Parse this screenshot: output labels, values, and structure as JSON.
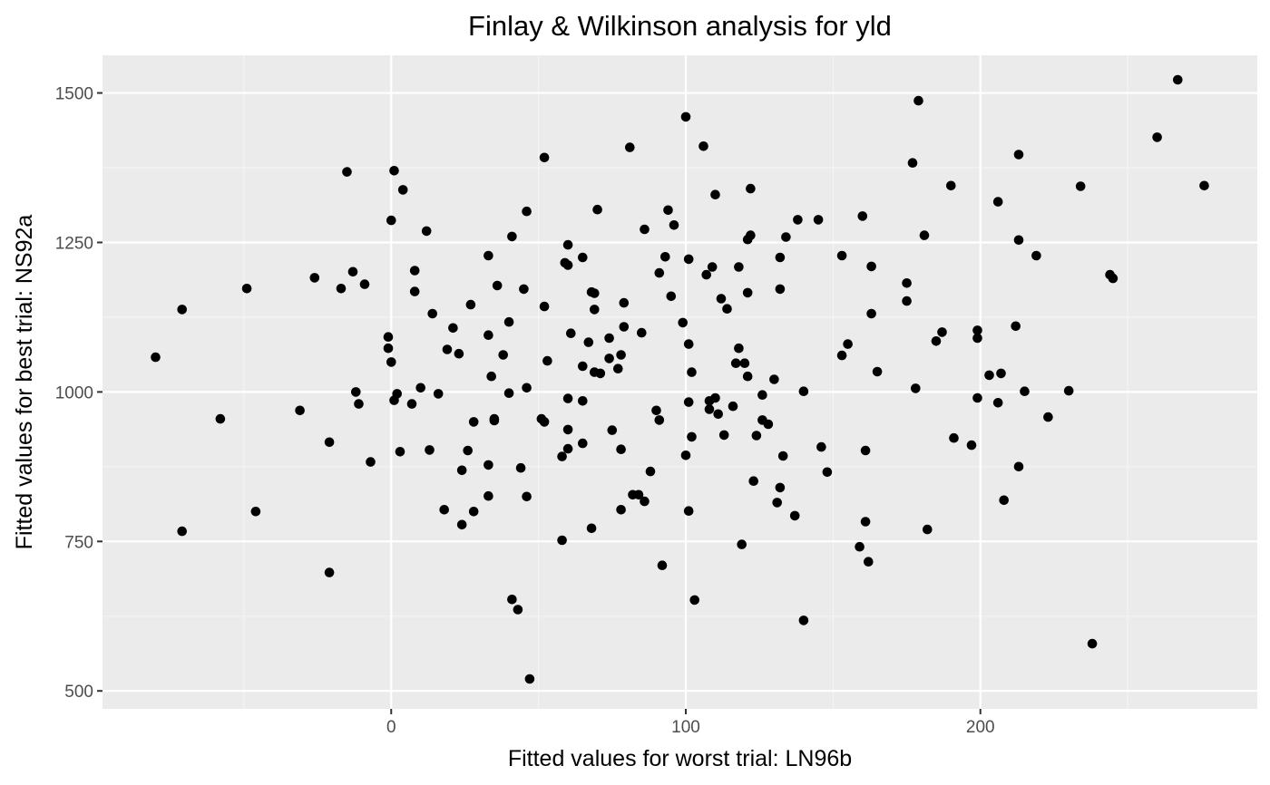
{
  "chart_data": {
    "type": "scatter",
    "title": "Finlay & Wilkinson analysis for yld",
    "xlabel": "Fitted values for worst trial: LN96b",
    "ylabel": "Fitted values for best trial: NS92a",
    "xlim": [
      -98,
      294
    ],
    "ylim": [
      470,
      1563
    ],
    "x_ticks": [
      0,
      100,
      200
    ],
    "y_ticks": [
      500,
      750,
      1000,
      1250,
      1500
    ],
    "x_tick_labels": [
      "0",
      "100",
      "200"
    ],
    "y_tick_labels": [
      "500",
      "750",
      "1000",
      "1250",
      "1500"
    ],
    "grid": true,
    "legend": "none",
    "colors": {
      "panel": "#ebebeb",
      "grid_major": "#ffffff",
      "grid_minor": "#f5f5f5",
      "point": "#000000",
      "tick_text": "#4d4d4d"
    },
    "points": [
      [
        -80,
        1058
      ],
      [
        -71,
        1138
      ],
      [
        -71,
        767
      ],
      [
        -58,
        955
      ],
      [
        -49,
        1173
      ],
      [
        -46,
        800
      ],
      [
        -31,
        969
      ],
      [
        -26,
        1191
      ],
      [
        -21,
        916
      ],
      [
        -21,
        698
      ],
      [
        -17,
        1173
      ],
      [
        -15,
        1368
      ],
      [
        -13,
        1201
      ],
      [
        -12,
        1000
      ],
      [
        -11,
        980
      ],
      [
        -9,
        1180
      ],
      [
        -7,
        883
      ],
      [
        -1,
        1073
      ],
      [
        -1,
        1092
      ],
      [
        0,
        1050
      ],
      [
        0,
        1287
      ],
      [
        1,
        1370
      ],
      [
        1,
        986
      ],
      [
        2,
        997
      ],
      [
        3,
        900
      ],
      [
        4,
        1338
      ],
      [
        7,
        980
      ],
      [
        8,
        1203
      ],
      [
        8,
        1168
      ],
      [
        10,
        1007
      ],
      [
        12,
        1269
      ],
      [
        13,
        903
      ],
      [
        14,
        1131
      ],
      [
        16,
        997
      ],
      [
        18,
        803
      ],
      [
        19,
        1071
      ],
      [
        21,
        1107
      ],
      [
        23,
        1064
      ],
      [
        24,
        869
      ],
      [
        24,
        778
      ],
      [
        26,
        902
      ],
      [
        27,
        1146
      ],
      [
        28,
        800
      ],
      [
        28,
        950
      ],
      [
        33,
        1228
      ],
      [
        33,
        1095
      ],
      [
        33,
        878
      ],
      [
        33,
        826
      ],
      [
        34,
        1026
      ],
      [
        35,
        952
      ],
      [
        35,
        955
      ],
      [
        36,
        1178
      ],
      [
        38,
        1062
      ],
      [
        40,
        1117
      ],
      [
        40,
        998
      ],
      [
        41,
        1260
      ],
      [
        41,
        653
      ],
      [
        43,
        636
      ],
      [
        44,
        873
      ],
      [
        45,
        1172
      ],
      [
        46,
        1302
      ],
      [
        46,
        1007
      ],
      [
        46,
        825
      ],
      [
        47,
        520
      ],
      [
        51,
        955
      ],
      [
        52,
        950
      ],
      [
        52,
        1143
      ],
      [
        52,
        1392
      ],
      [
        53,
        1052
      ],
      [
        58,
        892
      ],
      [
        58,
        752
      ],
      [
        59,
        1216
      ],
      [
        60,
        1246
      ],
      [
        60,
        1212
      ],
      [
        60,
        989
      ],
      [
        60,
        937
      ],
      [
        60,
        905
      ],
      [
        61,
        1098
      ],
      [
        65,
        1225
      ],
      [
        65,
        1043
      ],
      [
        65,
        985
      ],
      [
        65,
        914
      ],
      [
        67,
        1083
      ],
      [
        68,
        1167
      ],
      [
        68,
        772
      ],
      [
        69,
        1165
      ],
      [
        69,
        1138
      ],
      [
        69,
        1033
      ],
      [
        70,
        1305
      ],
      [
        71,
        1031
      ],
      [
        74,
        1056
      ],
      [
        74,
        1090
      ],
      [
        75,
        936
      ],
      [
        77,
        1039
      ],
      [
        78,
        1062
      ],
      [
        78,
        904
      ],
      [
        78,
        803
      ],
      [
        79,
        1149
      ],
      [
        79,
        1109
      ],
      [
        81,
        1409
      ],
      [
        82,
        828
      ],
      [
        84,
        828
      ],
      [
        85,
        1099
      ],
      [
        86,
        1272
      ],
      [
        86,
        817
      ],
      [
        88,
        867
      ],
      [
        90,
        969
      ],
      [
        91,
        1199
      ],
      [
        91,
        953
      ],
      [
        92,
        710
      ],
      [
        93,
        1226
      ],
      [
        94,
        1304
      ],
      [
        95,
        1160
      ],
      [
        96,
        1279
      ],
      [
        99,
        1116
      ],
      [
        100,
        1460
      ],
      [
        100,
        894
      ],
      [
        101,
        1222
      ],
      [
        101,
        801
      ],
      [
        101,
        1080
      ],
      [
        101,
        983
      ],
      [
        102,
        1033
      ],
      [
        102,
        925
      ],
      [
        103,
        652
      ],
      [
        106,
        1411
      ],
      [
        107,
        1196
      ],
      [
        108,
        985
      ],
      [
        108,
        971
      ],
      [
        109,
        1209
      ],
      [
        110,
        1330
      ],
      [
        110,
        990
      ],
      [
        111,
        963
      ],
      [
        112,
        1156
      ],
      [
        113,
        928
      ],
      [
        114,
        1139
      ],
      [
        116,
        976
      ],
      [
        117,
        1048
      ],
      [
        118,
        1073
      ],
      [
        118,
        1209
      ],
      [
        119,
        745
      ],
      [
        120,
        1048
      ],
      [
        121,
        1026
      ],
      [
        121,
        1166
      ],
      [
        121,
        1255
      ],
      [
        122,
        1262
      ],
      [
        122,
        1340
      ],
      [
        123,
        851
      ],
      [
        124,
        927
      ],
      [
        126,
        995
      ],
      [
        126,
        953
      ],
      [
        128,
        946
      ],
      [
        130,
        1021
      ],
      [
        131,
        815
      ],
      [
        132,
        840
      ],
      [
        132,
        1172
      ],
      [
        132,
        1225
      ],
      [
        133,
        893
      ],
      [
        134,
        1259
      ],
      [
        137,
        793
      ],
      [
        138,
        1288
      ],
      [
        140,
        618
      ],
      [
        140,
        1001
      ],
      [
        145,
        1288
      ],
      [
        146,
        908
      ],
      [
        148,
        866
      ],
      [
        153,
        1061
      ],
      [
        153,
        1228
      ],
      [
        155,
        1080
      ],
      [
        159,
        741
      ],
      [
        160,
        1294
      ],
      [
        161,
        783
      ],
      [
        161,
        902
      ],
      [
        162,
        716
      ],
      [
        163,
        1210
      ],
      [
        163,
        1131
      ],
      [
        165,
        1034
      ],
      [
        175,
        1182
      ],
      [
        175,
        1152
      ],
      [
        177,
        1383
      ],
      [
        178,
        1006
      ],
      [
        179,
        1487
      ],
      [
        181,
        1262
      ],
      [
        182,
        770
      ],
      [
        185,
        1085
      ],
      [
        187,
        1100
      ],
      [
        190,
        1345
      ],
      [
        191,
        923
      ],
      [
        197,
        911
      ],
      [
        199,
        990
      ],
      [
        199,
        1103
      ],
      [
        199,
        1090
      ],
      [
        203,
        1028
      ],
      [
        206,
        1318
      ],
      [
        206,
        982
      ],
      [
        207,
        1031
      ],
      [
        208,
        819
      ],
      [
        212,
        1110
      ],
      [
        213,
        1397
      ],
      [
        213,
        1254
      ],
      [
        213,
        875
      ],
      [
        215,
        1001
      ],
      [
        219,
        1228
      ],
      [
        223,
        958
      ],
      [
        230,
        1002
      ],
      [
        234,
        1344
      ],
      [
        238,
        579
      ],
      [
        244,
        1196
      ],
      [
        245,
        1190
      ],
      [
        260,
        1426
      ],
      [
        267,
        1522
      ],
      [
        276,
        1345
      ]
    ]
  }
}
